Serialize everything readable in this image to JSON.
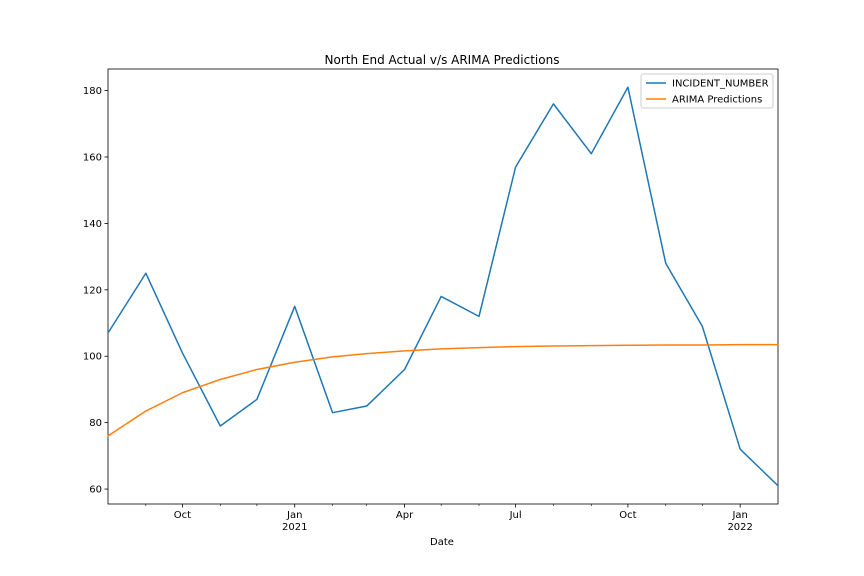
{
  "chart_data": {
    "type": "line",
    "title": "North End Actual v/s ARIMA Predictions",
    "xlabel": "Date",
    "ylabel": "",
    "x": [
      "2020-08",
      "2020-09",
      "2020-10",
      "2020-11",
      "2020-12",
      "2021-01",
      "2021-02",
      "2021-03",
      "2021-04",
      "2021-05",
      "2021-06",
      "2021-07",
      "2021-08",
      "2021-09",
      "2021-10",
      "2021-11",
      "2021-12",
      "2022-01",
      "2022-02"
    ],
    "series": [
      {
        "name": "INCIDENT_NUMBER",
        "color": "#1f77b4",
        "values": [
          107,
          125,
          101,
          79,
          87,
          115,
          83,
          85,
          96,
          118,
          112,
          157,
          176,
          161,
          181,
          128,
          109,
          72,
          61
        ]
      },
      {
        "name": "ARIMA Predictions",
        "color": "#ff7f0e",
        "values": [
          76,
          83.5,
          89,
          93,
          96,
          98.2,
          99.8,
          100.8,
          101.6,
          102.2,
          102.6,
          102.9,
          103.1,
          103.2,
          103.3,
          103.4,
          103.4,
          103.5,
          103.5
        ]
      }
    ],
    "ylim": [
      55.5,
      186.5
    ],
    "yticks": [
      60,
      80,
      100,
      120,
      140,
      160,
      180
    ],
    "xticks": [
      {
        "x": "2020-10",
        "label": "Oct",
        "sublabel": ""
      },
      {
        "x": "2021-01",
        "label": "Jan",
        "sublabel": "2021"
      },
      {
        "x": "2021-04",
        "label": "Apr",
        "sublabel": ""
      },
      {
        "x": "2021-07",
        "label": "Jul",
        "sublabel": ""
      },
      {
        "x": "2021-10",
        "label": "Oct",
        "sublabel": ""
      },
      {
        "x": "2022-01",
        "label": "Jan",
        "sublabel": "2022"
      }
    ],
    "minor_xticks": [
      "2020-09",
      "2020-11",
      "2020-12",
      "2021-02",
      "2021-03",
      "2021-05",
      "2021-06",
      "2021-08",
      "2021-09",
      "2021-11",
      "2021-12"
    ],
    "grid": false,
    "legend_position": "upper-right"
  }
}
